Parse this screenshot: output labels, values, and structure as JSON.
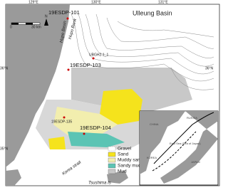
{
  "map": {
    "axes": {
      "top": [
        "129°E",
        "130°E",
        "131°E"
      ],
      "left": [
        "36°N",
        "35°N"
      ],
      "right": [
        "36°N"
      ]
    },
    "sites": [
      "19ESDP-101",
      "19ESDP-103",
      "19ESDP-104",
      "19ESDP-135",
      "UBGH2-1_1"
    ],
    "places": [
      "Ulleung Basin",
      "Hupo Basin",
      "Hupo Bank",
      "Korea strait",
      "Tsushima Is"
    ],
    "scale": {
      "start": "0",
      "end": "30 km",
      "north": "N"
    },
    "legend": [
      "Gravel",
      "Sand",
      "Muddy sand",
      "Sandy mud",
      "Mud"
    ],
    "inset": {
      "labels": [
        "CHINA",
        "RUSSIA",
        "East Sea (Sea of Japan)",
        "KOREA",
        "JAPAN"
      ]
    }
  }
}
